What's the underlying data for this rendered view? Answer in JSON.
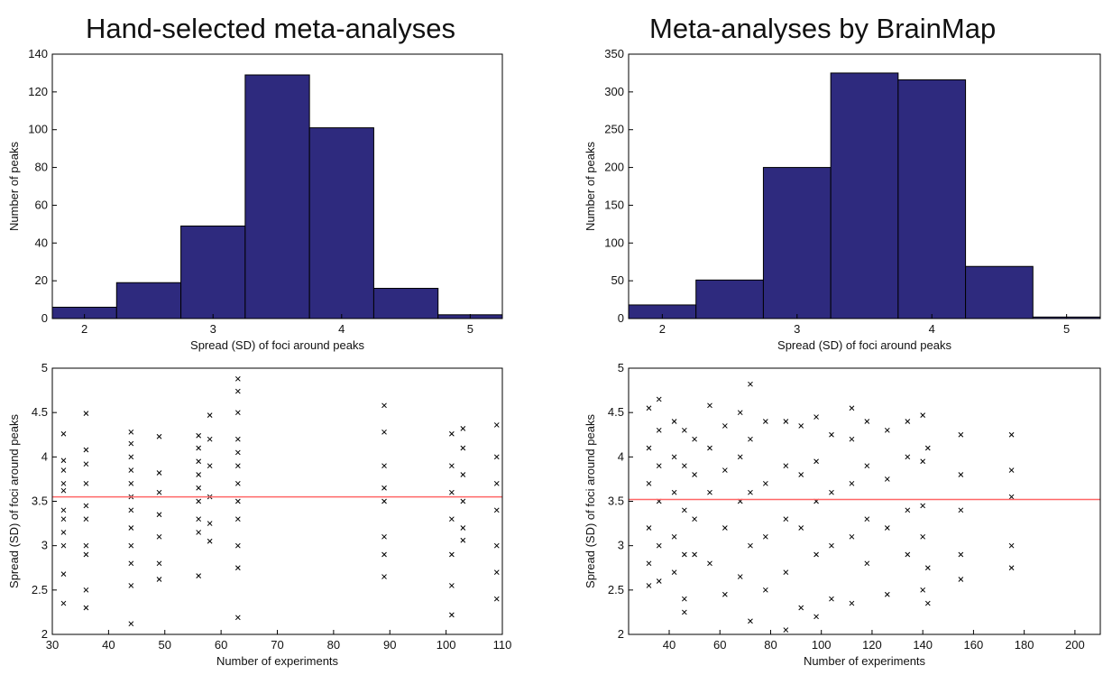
{
  "chart_data": [
    {
      "type": "histogram",
      "title": "Hand-selected meta-analyses",
      "xlabel": "Spread (SD) of foci around  peaks",
      "ylabel": "Number of peaks",
      "bins": [
        1.75,
        2.25,
        2.75,
        3.25,
        3.75,
        4.25,
        4.75,
        5.25
      ],
      "values": [
        6,
        19,
        49,
        129,
        101,
        16,
        2
      ],
      "color": "#2e2a7e",
      "xlim": [
        1.75,
        5.25
      ],
      "xticks": [
        2,
        3,
        4,
        5
      ],
      "ylim": [
        0,
        140
      ],
      "yticks": [
        0,
        20,
        40,
        60,
        80,
        100,
        120,
        140
      ]
    },
    {
      "type": "histogram",
      "title": "Meta-analyses by BrainMap",
      "xlabel": "Spread (SD) of foci around  peaks",
      "ylabel": "Number of peaks",
      "bins": [
        1.75,
        2.25,
        2.75,
        3.25,
        3.75,
        4.25,
        4.75,
        5.25
      ],
      "values": [
        18,
        51,
        200,
        325,
        316,
        69,
        2
      ],
      "color": "#2e2a7e",
      "xlim": [
        1.75,
        5.25
      ],
      "xticks": [
        2,
        3,
        4,
        5
      ],
      "ylim": [
        0,
        350
      ],
      "yticks": [
        0,
        50,
        100,
        150,
        200,
        250,
        300,
        350
      ]
    },
    {
      "type": "scatter",
      "xlabel": "Number of experiments",
      "ylabel": "Spread (SD) of foci around  peaks",
      "color": "#000000",
      "reference_line": 3.55,
      "reference_color": "#ff6666",
      "x": [
        32,
        32,
        32,
        32,
        32,
        32,
        32,
        32,
        32,
        32,
        32,
        36,
        36,
        36,
        36,
        36,
        36,
        36,
        36,
        36,
        36,
        44,
        44,
        44,
        44,
        44,
        44,
        44,
        44,
        44,
        44,
        44,
        44,
        49,
        49,
        49,
        49,
        49,
        49,
        49,
        56,
        56,
        56,
        56,
        56,
        56,
        56,
        56,
        56,
        58,
        58,
        58,
        58,
        58,
        58,
        63,
        63,
        63,
        63,
        63,
        63,
        63,
        63,
        63,
        63,
        63,
        63,
        89,
        89,
        89,
        89,
        89,
        89,
        89,
        89,
        101,
        101,
        101,
        101,
        101,
        101,
        101,
        103,
        103,
        103,
        103,
        103,
        103,
        109,
        109,
        109,
        109,
        109,
        109,
        109
      ],
      "values": [
        4.26,
        3.96,
        3.85,
        3.7,
        3.62,
        3.4,
        3.3,
        3.15,
        3.0,
        2.68,
        2.35,
        4.49,
        4.08,
        3.92,
        3.7,
        3.45,
        3.3,
        3.0,
        2.9,
        2.5,
        2.3,
        4.28,
        4.15,
        4.0,
        3.85,
        3.7,
        3.55,
        3.4,
        3.2,
        3.0,
        2.8,
        2.55,
        2.12,
        4.23,
        3.82,
        3.6,
        3.35,
        3.1,
        2.8,
        2.62,
        4.24,
        4.1,
        3.95,
        3.8,
        3.65,
        3.5,
        3.3,
        3.15,
        2.66,
        4.47,
        4.2,
        3.9,
        3.55,
        3.25,
        3.05,
        4.88,
        4.74,
        4.5,
        4.2,
        4.05,
        3.9,
        3.7,
        3.5,
        3.3,
        3.0,
        2.75,
        2.19,
        4.58,
        4.28,
        3.9,
        3.65,
        3.5,
        3.1,
        2.9,
        2.65,
        4.26,
        3.9,
        3.6,
        3.3,
        2.9,
        2.55,
        2.22,
        4.32,
        4.1,
        3.8,
        3.5,
        3.2,
        3.06,
        4.36,
        4.0,
        3.7,
        3.4,
        3.0,
        2.7,
        2.4
      ],
      "xlim": [
        30,
        110
      ],
      "xticks": [
        30,
        40,
        50,
        60,
        70,
        80,
        90,
        100,
        110
      ],
      "ylim": [
        2,
        5
      ],
      "yticks": [
        2,
        2.5,
        3,
        3.5,
        4,
        4.5,
        5
      ]
    },
    {
      "type": "scatter",
      "xlabel": "Number of experiments",
      "ylabel": "Spread (SD) of foci around  peaks",
      "color": "#000000",
      "reference_line": 3.52,
      "reference_color": "#ff6666",
      "x": [
        32,
        32,
        32,
        32,
        32,
        32,
        36,
        36,
        36,
        36,
        36,
        36,
        42,
        42,
        42,
        42,
        42,
        46,
        46,
        46,
        46,
        46,
        46,
        50,
        50,
        50,
        50,
        56,
        56,
        56,
        56,
        62,
        62,
        62,
        62,
        68,
        68,
        68,
        68,
        72,
        72,
        72,
        72,
        72,
        78,
        78,
        78,
        78,
        86,
        86,
        86,
        86,
        86,
        92,
        92,
        92,
        92,
        98,
        98,
        98,
        98,
        98,
        104,
        104,
        104,
        104,
        112,
        112,
        112,
        112,
        112,
        118,
        118,
        118,
        118,
        126,
        126,
        126,
        126,
        134,
        134,
        134,
        134,
        140,
        140,
        140,
        140,
        140,
        142,
        142,
        142,
        155,
        155,
        155,
        155,
        155,
        175,
        175,
        175,
        175,
        175
      ],
      "values": [
        4.55,
        4.1,
        3.7,
        3.2,
        2.8,
        2.55,
        4.65,
        4.3,
        3.9,
        3.5,
        3.0,
        2.6,
        4.4,
        4.0,
        3.6,
        3.1,
        2.7,
        4.3,
        3.9,
        3.4,
        2.9,
        2.4,
        2.25,
        4.2,
        3.8,
        3.3,
        2.9,
        4.58,
        4.1,
        3.6,
        2.8,
        4.35,
        3.85,
        3.2,
        2.45,
        4.5,
        4.0,
        3.5,
        2.65,
        4.82,
        4.2,
        3.6,
        3.0,
        2.15,
        4.4,
        3.7,
        3.1,
        2.5,
        4.4,
        3.9,
        3.3,
        2.7,
        2.05,
        4.35,
        3.8,
        3.2,
        2.3,
        4.45,
        3.95,
        3.5,
        2.9,
        2.2,
        4.25,
        3.6,
        3.0,
        2.4,
        4.55,
        4.2,
        3.7,
        3.1,
        2.35,
        4.4,
        3.9,
        3.3,
        2.8,
        4.3,
        3.75,
        3.2,
        2.45,
        4.4,
        4.0,
        3.4,
        2.9,
        4.47,
        3.95,
        3.45,
        3.1,
        2.5,
        4.1,
        2.75,
        2.35,
        4.25,
        3.8,
        3.4,
        2.9,
        2.62,
        4.25,
        3.85,
        3.55,
        3.0,
        2.75
      ],
      "xlim": [
        24,
        210
      ],
      "xticks": [
        40,
        60,
        80,
        100,
        120,
        140,
        160,
        180,
        200
      ],
      "ylim": [
        2,
        5
      ],
      "yticks": [
        2,
        2.5,
        3,
        3.5,
        4,
        4.5,
        5
      ]
    }
  ]
}
